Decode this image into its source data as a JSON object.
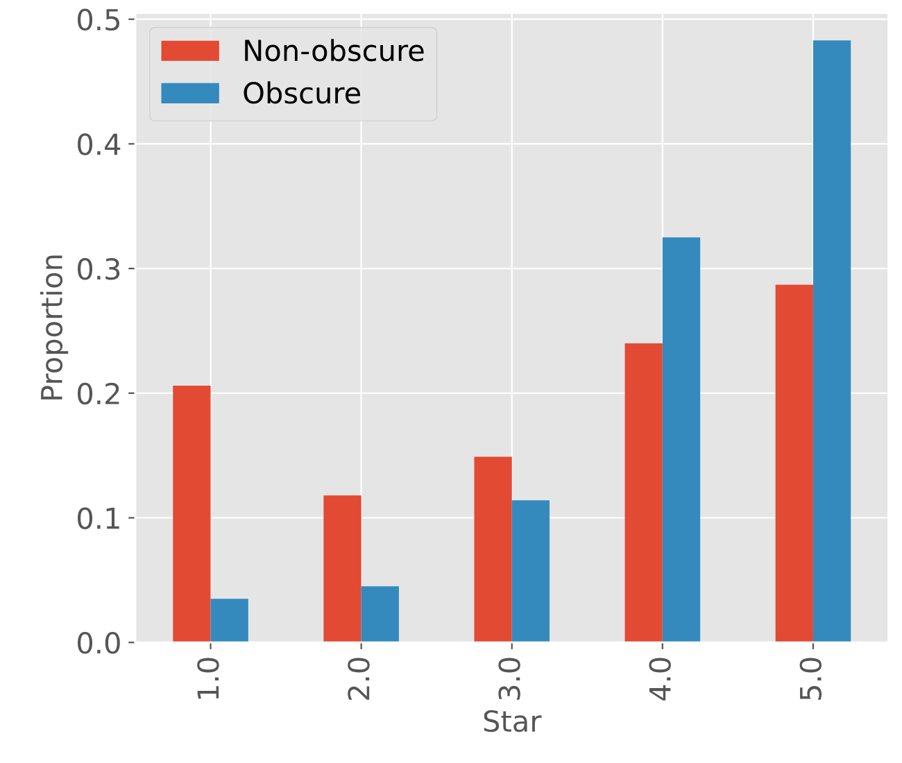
{
  "chart_data": {
    "type": "bar",
    "xlabel": "Star",
    "ylabel": "Proportion",
    "categories": [
      "1.0",
      "2.0",
      "3.0",
      "4.0",
      "5.0"
    ],
    "series": [
      {
        "name": "Non-obscure",
        "color": "#e24a33",
        "values": [
          0.206,
          0.118,
          0.149,
          0.24,
          0.287
        ]
      },
      {
        "name": "Obscure",
        "color": "#348abd",
        "values": [
          0.035,
          0.045,
          0.114,
          0.325,
          0.483
        ]
      }
    ],
    "ylim": [
      0,
      0.505
    ],
    "yticks": [
      {
        "value": 0,
        "label": "0.0"
      },
      {
        "value": 0.1,
        "label": "0.1"
      },
      {
        "value": 0.2,
        "label": "0.2"
      },
      {
        "value": 0.3,
        "label": "0.3"
      },
      {
        "value": 0.4,
        "label": "0.4"
      },
      {
        "value": 0.5,
        "label": "0.5"
      }
    ],
    "grid": true,
    "legend": "top left"
  }
}
